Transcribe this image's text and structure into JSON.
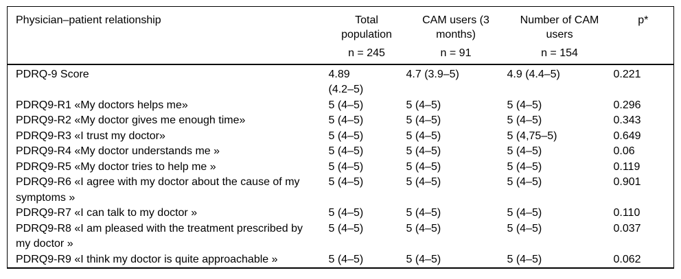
{
  "table": {
    "row_header_label": "Physician–patient relationship",
    "columns": [
      {
        "label": "Total\npopulation",
        "n": "n = 245"
      },
      {
        "label": "CAM users (3\nmonths)",
        "n": "n = 91"
      },
      {
        "label": "Number of CAM\nusers",
        "n": "n = 154"
      },
      {
        "label": "p*",
        "n": ""
      }
    ],
    "rows": [
      {
        "label": "PDRQ-9 Score",
        "total": "4.89\n(4.2–5)",
        "cam_users": "4.7 (3.9–5)",
        "num_cam": "4.9 (4.4–5)",
        "p": "0.221"
      },
      {
        "label": "PDRQ9-R1 «My doctors helps me»",
        "total": "5 (4–5)",
        "cam_users": "5 (4–5)",
        "num_cam": "5 (4–5)",
        "p": "0.296"
      },
      {
        "label": "PDRQ9-R2 «My doctor gives me enough time»",
        "total": "5 (4–5)",
        "cam_users": "5 (4–5)",
        "num_cam": "5 (4–5)",
        "p": "0.343"
      },
      {
        "label": "PDRQ9-R3 «I trust my doctor»",
        "total": "5 (4–5)",
        "cam_users": "5 (4–5)",
        "num_cam": "5 (4,75–5)",
        "p": "0.649"
      },
      {
        "label": "PDRQ9-R4 «My doctor understands me »",
        "total": "5 (4–5)",
        "cam_users": "5 (4–5)",
        "num_cam": "5 (4–5)",
        "p": "0.06"
      },
      {
        "label": "PDRQ9-R5 «My doctor tries to help me »",
        "total": "5 (4–5)",
        "cam_users": "5 (4–5)",
        "num_cam": "5 (4–5)",
        "p": "0.119"
      },
      {
        "label": "PDRQ9-R6 «I agree with my doctor about the cause of my\nsymptoms »",
        "total": "5 (4–5)",
        "cam_users": "5 (4–5)",
        "num_cam": "5 (4–5)",
        "p": "0.901"
      },
      {
        "label": "PDRQ9-R7 «I can talk to my doctor »",
        "total": "5 (4–5)",
        "cam_users": "5 (4–5)",
        "num_cam": "5 (4–5)",
        "p": "0.110"
      },
      {
        "label": "PDRQ9-R8 «I am pleased with the treatment prescribed by\nmy doctor »",
        "total": "5 (4–5)",
        "cam_users": "5 (4–5)",
        "num_cam": "5 (4–5)",
        "p": "0.037"
      },
      {
        "label": "PDRQ9-R9 «I think my doctor is quite approachable »",
        "total": "5 (4–5)",
        "cam_users": "5 (4–5)",
        "num_cam": "5 (4–5)",
        "p": "0.062"
      }
    ]
  }
}
